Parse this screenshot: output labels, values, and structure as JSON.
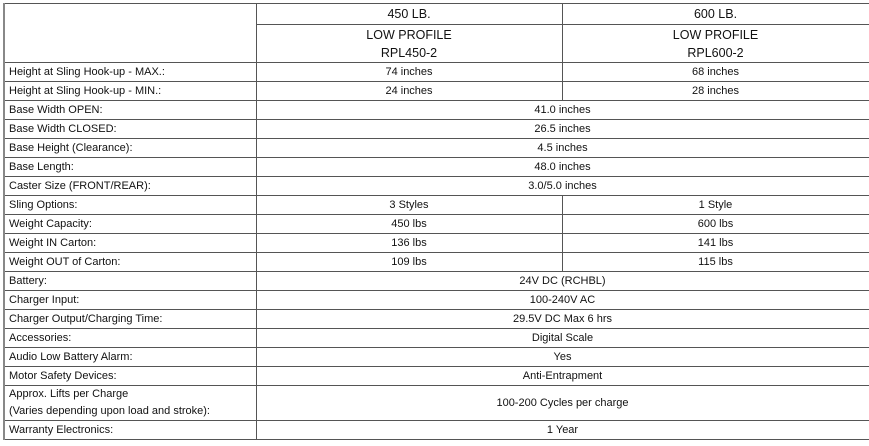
{
  "columns": [
    {
      "capacity": "450 LB.",
      "profile": "LOW PROFILE",
      "model": "RPL450-2"
    },
    {
      "capacity": "600 LB.",
      "profile": "LOW PROFILE",
      "model": "RPL600-2"
    }
  ],
  "rows": [
    {
      "label": "Height at Sling Hook-up - MAX.:",
      "values": [
        "74 inches",
        "68 inches"
      ]
    },
    {
      "label": "Height at Sling Hook-up - MIN.:",
      "values": [
        "24 inches",
        "28 inches"
      ]
    },
    {
      "label": "Base Width OPEN:",
      "value": "41.0 inches"
    },
    {
      "label": "Base Width CLOSED:",
      "value": "26.5 inches"
    },
    {
      "label": "Base Height (Clearance):",
      "value": "4.5 inches"
    },
    {
      "label": "Base Length:",
      "value": "48.0 inches"
    },
    {
      "label": "Caster Size (FRONT/REAR):",
      "value": "3.0/5.0 inches"
    },
    {
      "label": "Sling Options:",
      "values": [
        "3 Styles",
        "1 Style"
      ]
    },
    {
      "label": "Weight Capacity:",
      "values": [
        "450 lbs",
        "600 lbs"
      ]
    },
    {
      "label": "Weight IN Carton:",
      "values": [
        "136 lbs",
        "141 lbs"
      ]
    },
    {
      "label": "Weight OUT of Carton:",
      "values": [
        "109 lbs",
        "115 lbs"
      ]
    },
    {
      "label": "Battery:",
      "value": "24V DC (RCHBL)"
    },
    {
      "label": "Charger Input:",
      "value": "100-240V AC"
    },
    {
      "label": "Charger Output/Charging Time:",
      "value": "29.5V DC Max 6 hrs"
    },
    {
      "label": "Accessories:",
      "value": "Digital Scale"
    },
    {
      "label": "Audio Low Battery Alarm:",
      "value": "Yes"
    },
    {
      "label": "Motor Safety Devices:",
      "value": "Anti-Entrapment"
    },
    {
      "label": "Approx. Lifts per Charge",
      "label2": "(Varies depending upon load and stroke):",
      "value": "100-200 Cycles per charge"
    },
    {
      "label": "Warranty Electronics:",
      "value": "1 Year"
    }
  ]
}
